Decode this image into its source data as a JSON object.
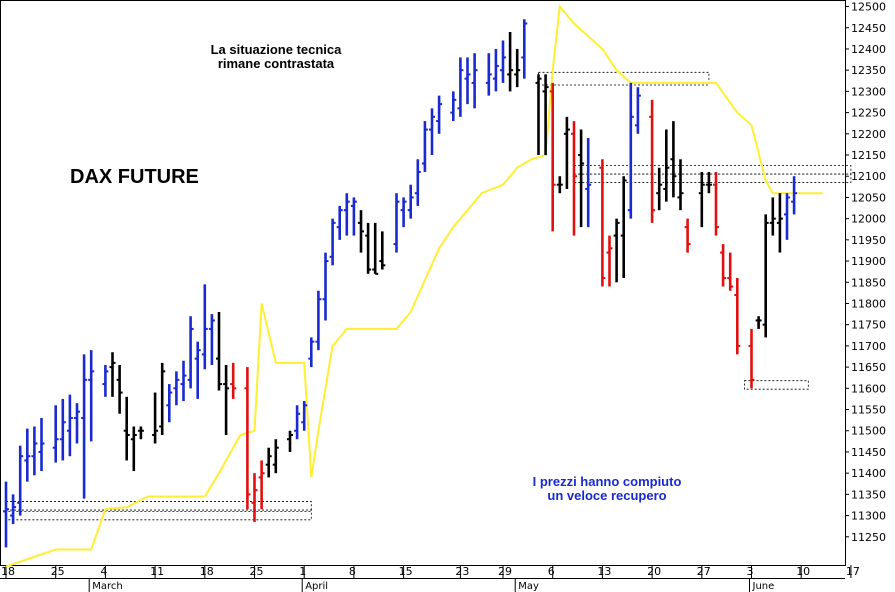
{
  "chart_data": {
    "type": "ohlc",
    "title": "DAX FUTURE",
    "annotations": [
      "La situazione tecnica\nrimane contrastata",
      "I prezzi hanno compiuto\nun veloce recupero"
    ],
    "colors": {
      "up": "#1a2ad0",
      "down": "#e01010",
      "neutral": "#000000",
      "overlay": "#ffee33",
      "annotation_blue": "#1a2ad0"
    },
    "ylim": [
      11200,
      12525
    ],
    "y_ticks": [
      11250,
      11300,
      11350,
      11400,
      11450,
      11500,
      11550,
      11600,
      11650,
      11700,
      11750,
      11800,
      11850,
      11900,
      11950,
      12000,
      12050,
      12100,
      12150,
      12200,
      12250,
      12300,
      12350,
      12400,
      12450,
      12500
    ],
    "x_ticks": [
      {
        "label": "18",
        "day": 0
      },
      {
        "label": "25",
        "day": 7
      },
      {
        "label": "4",
        "day": 14
      },
      {
        "label": "11",
        "day": 21
      },
      {
        "label": "18",
        "day": 28
      },
      {
        "label": "25",
        "day": 35
      },
      {
        "label": "1",
        "day": 42
      },
      {
        "label": "8",
        "day": 49
      },
      {
        "label": "15",
        "day": 56
      },
      {
        "label": "23",
        "day": 64
      },
      {
        "label": "29",
        "day": 70
      },
      {
        "label": "6",
        "day": 77
      },
      {
        "label": "13",
        "day": 84
      },
      {
        "label": "20",
        "day": 91
      },
      {
        "label": "27",
        "day": 98
      },
      {
        "label": "3",
        "day": 105
      },
      {
        "label": "10",
        "day": 112
      },
      {
        "label": "17",
        "day": 119
      }
    ],
    "month_labels": [
      {
        "label": "March",
        "day": 12
      },
      {
        "label": "April",
        "day": 42
      },
      {
        "label": "May",
        "day": 72
      },
      {
        "label": "June",
        "day": 105
      }
    ],
    "bars": [
      {
        "day": 0,
        "h": 11380,
        "l": 11225,
        "o": 11310,
        "c": 11315,
        "col": "up"
      },
      {
        "day": 1,
        "h": 11350,
        "l": 11280,
        "o": 11300,
        "c": 11320,
        "col": "up"
      },
      {
        "day": 2,
        "h": 11465,
        "l": 11300,
        "o": 11330,
        "c": 11440,
        "col": "up"
      },
      {
        "day": 3,
        "h": 11505,
        "l": 11380,
        "o": 11430,
        "c": 11440,
        "col": "up"
      },
      {
        "day": 4,
        "h": 11510,
        "l": 11395,
        "o": 11440,
        "c": 11470,
        "col": "up"
      },
      {
        "day": 5,
        "h": 11530,
        "l": 11405,
        "o": 11450,
        "c": 11470,
        "col": "up"
      },
      {
        "day": 7,
        "h": 11560,
        "l": 11425,
        "o": 11460,
        "c": 11480,
        "col": "up"
      },
      {
        "day": 8,
        "h": 11575,
        "l": 11430,
        "o": 11480,
        "c": 11520,
        "col": "up"
      },
      {
        "day": 9,
        "h": 11585,
        "l": 11440,
        "o": 11500,
        "c": 11530,
        "col": "up"
      },
      {
        "day": 10,
        "h": 11565,
        "l": 11470,
        "o": 11530,
        "c": 11545,
        "col": "up"
      },
      {
        "day": 11,
        "h": 11680,
        "l": 11340,
        "o": 11530,
        "c": 11620,
        "col": "up"
      },
      {
        "day": 12,
        "h": 11690,
        "l": 11475,
        "o": 11620,
        "c": 11640,
        "col": "up"
      },
      {
        "day": 14,
        "h": 11655,
        "l": 11580,
        "o": 11610,
        "c": 11640,
        "col": "up"
      },
      {
        "day": 15,
        "h": 11685,
        "l": 11580,
        "o": 11650,
        "c": 11660,
        "col": "neutral"
      },
      {
        "day": 16,
        "h": 11655,
        "l": 11540,
        "o": 11620,
        "c": 11590,
        "col": "neutral"
      },
      {
        "day": 17,
        "h": 11580,
        "l": 11430,
        "o": 11500,
        "c": 11490,
        "col": "neutral"
      },
      {
        "day": 18,
        "h": 11510,
        "l": 11405,
        "o": 11480,
        "c": 11490,
        "col": "neutral"
      },
      {
        "day": 19,
        "h": 11510,
        "l": 11480,
        "o": 11500,
        "c": 11500,
        "col": "neutral"
      },
      {
        "day": 21,
        "h": 11590,
        "l": 11470,
        "o": 11490,
        "c": 11500,
        "col": "neutral"
      },
      {
        "day": 22,
        "h": 11660,
        "l": 11490,
        "o": 11510,
        "c": 11640,
        "col": "neutral"
      },
      {
        "day": 23,
        "h": 11610,
        "l": 11520,
        "o": 11560,
        "c": 11590,
        "col": "up"
      },
      {
        "day": 24,
        "h": 11640,
        "l": 11560,
        "o": 11600,
        "c": 11620,
        "col": "up"
      },
      {
        "day": 25,
        "h": 11665,
        "l": 11570,
        "o": 11610,
        "c": 11630,
        "col": "up"
      },
      {
        "day": 26,
        "h": 11770,
        "l": 11600,
        "o": 11620,
        "c": 11740,
        "col": "up"
      },
      {
        "day": 27,
        "h": 11710,
        "l": 11575,
        "o": 11670,
        "c": 11690,
        "col": "up"
      },
      {
        "day": 28,
        "h": 11845,
        "l": 11645,
        "o": 11680,
        "c": 11740,
        "col": "up"
      },
      {
        "day": 29,
        "h": 11775,
        "l": 11655,
        "o": 11740,
        "c": 11760,
        "col": "up"
      },
      {
        "day": 30,
        "h": 11780,
        "l": 11595,
        "o": 11670,
        "c": 11610,
        "col": "neutral"
      },
      {
        "day": 31,
        "h": 11655,
        "l": 11490,
        "o": 11610,
        "c": 11600,
        "col": "neutral"
      },
      {
        "day": 32,
        "h": 11660,
        "l": 11575,
        "o": 11610,
        "c": 11600,
        "col": "red"
      },
      {
        "day": 34,
        "h": 11650,
        "l": 11315,
        "o": 11600,
        "c": 11350,
        "col": "red"
      },
      {
        "day": 35,
        "h": 11400,
        "l": 11285,
        "o": 11330,
        "c": 11360,
        "col": "red"
      },
      {
        "day": 36,
        "h": 11430,
        "l": 11315,
        "o": 11390,
        "c": 11400,
        "col": "red"
      },
      {
        "day": 37,
        "h": 11460,
        "l": 11390,
        "o": 11420,
        "c": 11440,
        "col": "neutral"
      },
      {
        "day": 38,
        "h": 11480,
        "l": 11400,
        "o": 11420,
        "c": 11460,
        "col": "neutral"
      },
      {
        "day": 40,
        "h": 11500,
        "l": 11450,
        "o": 11480,
        "c": 11490,
        "col": "neutral"
      },
      {
        "day": 41,
        "h": 11560,
        "l": 11480,
        "o": 11500,
        "c": 11540,
        "col": "up"
      },
      {
        "day": 42,
        "h": 11570,
        "l": 11500,
        "o": 11520,
        "c": 11560,
        "col": "up"
      },
      {
        "day": 43,
        "h": 11720,
        "l": 11650,
        "o": 11670,
        "c": 11710,
        "col": "up"
      },
      {
        "day": 44,
        "h": 11830,
        "l": 11690,
        "o": 11710,
        "c": 11810,
        "col": "up"
      },
      {
        "day": 45,
        "h": 11920,
        "l": 11760,
        "o": 11810,
        "c": 11900,
        "col": "up"
      },
      {
        "day": 46,
        "h": 12000,
        "l": 11890,
        "o": 11910,
        "c": 11990,
        "col": "up"
      },
      {
        "day": 47,
        "h": 12030,
        "l": 11950,
        "o": 11980,
        "c": 12020,
        "col": "up"
      },
      {
        "day": 48,
        "h": 12060,
        "l": 11960,
        "o": 12020,
        "c": 12040,
        "col": "up"
      },
      {
        "day": 49,
        "h": 12050,
        "l": 11960,
        "o": 12030,
        "c": 12040,
        "col": "up"
      },
      {
        "day": 50,
        "h": 12020,
        "l": 11920,
        "o": 11990,
        "c": 11970,
        "col": "neutral"
      },
      {
        "day": 51,
        "h": 11990,
        "l": 11870,
        "o": 11960,
        "c": 11880,
        "col": "neutral"
      },
      {
        "day": 52,
        "h": 11990,
        "l": 11870,
        "o": 11880,
        "c": 11870,
        "col": "neutral"
      },
      {
        "day": 53,
        "h": 11970,
        "l": 11880,
        "o": 11900,
        "c": 11890,
        "col": "neutral"
      },
      {
        "day": 55,
        "h": 12060,
        "l": 11920,
        "o": 11940,
        "c": 12040,
        "col": "up"
      },
      {
        "day": 56,
        "h": 12050,
        "l": 11980,
        "o": 12020,
        "c": 12040,
        "col": "up"
      },
      {
        "day": 57,
        "h": 12080,
        "l": 12000,
        "o": 12020,
        "c": 12050,
        "col": "up"
      },
      {
        "day": 58,
        "h": 12140,
        "l": 12030,
        "o": 12060,
        "c": 12110,
        "col": "up"
      },
      {
        "day": 59,
        "h": 12230,
        "l": 12110,
        "o": 12130,
        "c": 12210,
        "col": "up"
      },
      {
        "day": 60,
        "h": 12260,
        "l": 12150,
        "o": 12210,
        "c": 12240,
        "col": "up"
      },
      {
        "day": 61,
        "h": 12290,
        "l": 12200,
        "o": 12230,
        "c": 12270,
        "col": "up"
      },
      {
        "day": 63,
        "h": 12300,
        "l": 12230,
        "o": 12250,
        "c": 12280,
        "col": "up"
      },
      {
        "day": 64,
        "h": 12380,
        "l": 12240,
        "o": 12260,
        "c": 12350,
        "col": "up"
      },
      {
        "day": 65,
        "h": 12380,
        "l": 12270,
        "o": 12330,
        "c": 12340,
        "col": "up"
      },
      {
        "day": 66,
        "h": 12390,
        "l": 12260,
        "o": 12320,
        "c": 12350,
        "col": "up"
      },
      {
        "day": 68,
        "h": 12390,
        "l": 12290,
        "o": 12320,
        "c": 12340,
        "col": "up"
      },
      {
        "day": 69,
        "h": 12400,
        "l": 12300,
        "o": 12330,
        "c": 12360,
        "col": "up"
      },
      {
        "day": 70,
        "h": 12420,
        "l": 12320,
        "o": 12350,
        "c": 12380,
        "col": "up"
      },
      {
        "day": 71,
        "h": 12440,
        "l": 12300,
        "o": 12340,
        "c": 12350,
        "col": "neutral"
      },
      {
        "day": 72,
        "h": 12400,
        "l": 12310,
        "o": 12340,
        "c": 12350,
        "col": "neutral"
      },
      {
        "day": 73,
        "h": 12470,
        "l": 12330,
        "o": 12380,
        "c": 12460,
        "col": "up"
      },
      {
        "day": 75,
        "h": 12340,
        "l": 12150,
        "o": 12320,
        "c": 12330,
        "col": "neutral"
      },
      {
        "day": 76,
        "h": 12340,
        "l": 12150,
        "o": 12300,
        "c": 12310,
        "col": "neutral"
      },
      {
        "day": 77,
        "h": 12320,
        "l": 11970,
        "o": 12300,
        "c": 12080,
        "col": "red"
      },
      {
        "day": 78,
        "h": 12100,
        "l": 12060,
        "o": 12080,
        "c": 12080,
        "col": "neutral"
      },
      {
        "day": 79,
        "h": 12240,
        "l": 12070,
        "o": 12200,
        "c": 12210,
        "col": "neutral"
      },
      {
        "day": 80,
        "h": 12230,
        "l": 11960,
        "o": 12200,
        "c": 12100,
        "col": "red"
      },
      {
        "day": 81,
        "h": 12210,
        "l": 11980,
        "o": 12150,
        "c": 12130,
        "col": "neutral"
      },
      {
        "day": 82,
        "h": 12190,
        "l": 11980,
        "o": 12070,
        "c": 12080,
        "col": "up"
      },
      {
        "day": 84,
        "h": 12140,
        "l": 11840,
        "o": 12120,
        "c": 11860,
        "col": "red"
      },
      {
        "day": 85,
        "h": 11960,
        "l": 11840,
        "o": 11920,
        "c": 11930,
        "col": "red"
      },
      {
        "day": 86,
        "h": 12000,
        "l": 11850,
        "o": 11960,
        "c": 11990,
        "col": "neutral"
      },
      {
        "day": 87,
        "h": 12100,
        "l": 11860,
        "o": 11960,
        "c": 12090,
        "col": "neutral"
      },
      {
        "day": 88,
        "h": 12320,
        "l": 12000,
        "o": 12020,
        "c": 12240,
        "col": "up"
      },
      {
        "day": 89,
        "h": 12310,
        "l": 12200,
        "o": 12220,
        "c": 12290,
        "col": "up"
      },
      {
        "day": 91,
        "h": 12280,
        "l": 11990,
        "o": 12240,
        "c": 12020,
        "col": "red"
      },
      {
        "day": 92,
        "h": 12120,
        "l": 12020,
        "o": 12060,
        "c": 12080,
        "col": "neutral"
      },
      {
        "day": 93,
        "h": 12210,
        "l": 12040,
        "o": 12070,
        "c": 12120,
        "col": "neutral"
      },
      {
        "day": 94,
        "h": 12230,
        "l": 12050,
        "o": 12140,
        "c": 12100,
        "col": "neutral"
      },
      {
        "day": 95,
        "h": 12140,
        "l": 12020,
        "o": 12050,
        "c": 12060,
        "col": "neutral"
      },
      {
        "day": 96,
        "h": 12000,
        "l": 11920,
        "o": 11980,
        "c": 11940,
        "col": "red"
      },
      {
        "day": 98,
        "h": 12110,
        "l": 11980,
        "o": 12060,
        "c": 12080,
        "col": "neutral"
      },
      {
        "day": 99,
        "h": 12110,
        "l": 12060,
        "o": 12080,
        "c": 12080,
        "col": "neutral"
      },
      {
        "day": 100,
        "h": 12110,
        "l": 11960,
        "o": 12080,
        "c": 11980,
        "col": "red"
      },
      {
        "day": 101,
        "h": 11940,
        "l": 11840,
        "o": 11920,
        "c": 11860,
        "col": "red"
      },
      {
        "day": 102,
        "h": 11920,
        "l": 11830,
        "o": 11860,
        "c": 11840,
        "col": "red"
      },
      {
        "day": 103,
        "h": 11860,
        "l": 11680,
        "o": 11820,
        "c": 11700,
        "col": "red"
      },
      {
        "day": 105,
        "h": 11740,
        "l": 11600,
        "o": 11700,
        "c": 11620,
        "col": "red"
      },
      {
        "day": 106,
        "h": 11770,
        "l": 11740,
        "o": 11760,
        "c": 11760,
        "col": "neutral"
      },
      {
        "day": 107,
        "h": 12010,
        "l": 11720,
        "o": 11750,
        "c": 11990,
        "col": "neutral"
      },
      {
        "day": 108,
        "h": 12050,
        "l": 11960,
        "o": 11990,
        "c": 12000,
        "col": "neutral"
      },
      {
        "day": 109,
        "h": 12060,
        "l": 11920,
        "o": 11990,
        "c": 12000,
        "col": "neutral"
      },
      {
        "day": 110,
        "h": 12060,
        "l": 11950,
        "o": 12010,
        "c": 12050,
        "col": "up"
      },
      {
        "day": 111,
        "h": 12100,
        "l": 12010,
        "o": 12040,
        "c": 12060,
        "col": "up"
      }
    ],
    "overlay_line": [
      {
        "day": 0,
        "v": 11180
      },
      {
        "day": 7,
        "v": 11220
      },
      {
        "day": 12,
        "v": 11220
      },
      {
        "day": 14,
        "v": 11315
      },
      {
        "day": 17,
        "v": 11320
      },
      {
        "day": 20,
        "v": 11345
      },
      {
        "day": 28,
        "v": 11345
      },
      {
        "day": 30,
        "v": 11400
      },
      {
        "day": 33,
        "v": 11490
      },
      {
        "day": 35,
        "v": 11500
      },
      {
        "day": 36,
        "v": 11800
      },
      {
        "day": 38,
        "v": 11660
      },
      {
        "day": 42,
        "v": 11660
      },
      {
        "day": 43,
        "v": 11390
      },
      {
        "day": 44,
        "v": 11500
      },
      {
        "day": 46,
        "v": 11700
      },
      {
        "day": 48,
        "v": 11740
      },
      {
        "day": 55,
        "v": 11740
      },
      {
        "day": 57,
        "v": 11780
      },
      {
        "day": 61,
        "v": 11930
      },
      {
        "day": 63,
        "v": 11980
      },
      {
        "day": 65,
        "v": 12020
      },
      {
        "day": 67,
        "v": 12060
      },
      {
        "day": 70,
        "v": 12080
      },
      {
        "day": 72,
        "v": 12120
      },
      {
        "day": 74,
        "v": 12140
      },
      {
        "day": 76,
        "v": 12150
      },
      {
        "day": 77,
        "v": 12350
      },
      {
        "day": 78,
        "v": 12500
      },
      {
        "day": 80,
        "v": 12460
      },
      {
        "day": 84,
        "v": 12400
      },
      {
        "day": 86,
        "v": 12350
      },
      {
        "day": 88,
        "v": 12320
      },
      {
        "day": 100,
        "v": 12320
      },
      {
        "day": 103,
        "v": 12250
      },
      {
        "day": 105,
        "v": 12220
      },
      {
        "day": 107,
        "v": 12090
      },
      {
        "day": 108,
        "v": 12060
      },
      {
        "day": 115,
        "v": 12060
      }
    ],
    "dashed_boxes": [
      {
        "d0": 0,
        "d1": 43,
        "v0": 11333,
        "v1": 11310
      },
      {
        "d0": 0,
        "d1": 43,
        "v0": 11313,
        "v1": 11290
      },
      {
        "d0": 75,
        "d1": 99,
        "v0": 12345,
        "v1": 12315
      },
      {
        "d0": 80,
        "d1": 119,
        "v0": 12125,
        "v1": 12105
      },
      {
        "d0": 80,
        "d1": 119,
        "v0": 12105,
        "v1": 12085
      },
      {
        "d0": 104,
        "d1": 113,
        "v0": 11618,
        "v1": 11598
      }
    ]
  }
}
